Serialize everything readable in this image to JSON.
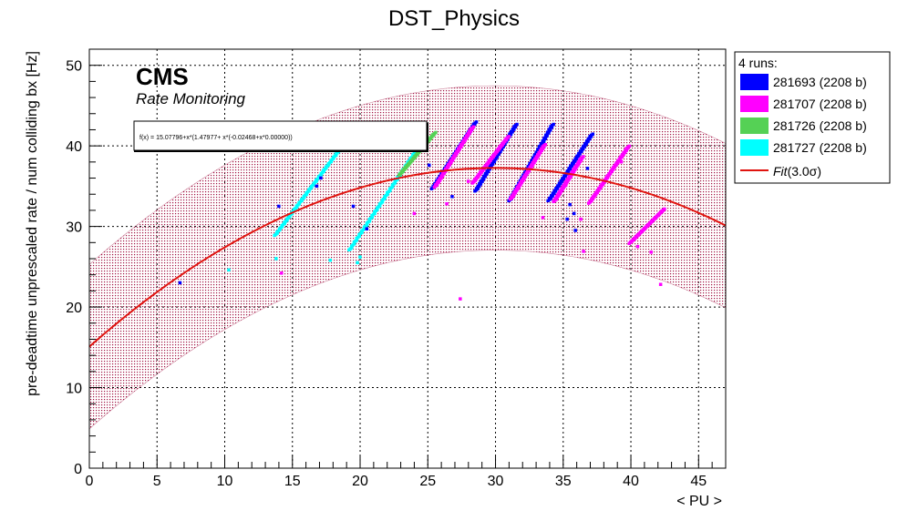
{
  "chart_data": {
    "type": "scatter",
    "title": "DST_Physics",
    "xlabel": "< PU >",
    "ylabel": "pre-deadtime unprescaled rate / num colliding bx [Hz]",
    "xlim": [
      0,
      47
    ],
    "ylim": [
      0,
      52
    ],
    "x_ticks": [
      0,
      5,
      10,
      15,
      20,
      25,
      30,
      35,
      40,
      45
    ],
    "y_ticks": [
      0,
      10,
      20,
      30,
      40,
      50
    ],
    "grid": true,
    "legend_position": "right",
    "cms_label": "CMS",
    "cms_sublabel": "Rate Monitoring",
    "fit_formula": "f(x) = 15.07796+x*(1.47977+ x*(-0.02468+x*0.00000))",
    "fit": {
      "c0": 15.07796,
      "c1": 1.47977,
      "c2": -0.02468,
      "c3": 0.0,
      "band_sigma": 3.0,
      "band_half_width": 10.2
    },
    "legend": {
      "header": "4 runs:",
      "fit_label": "Fit",
      "fit_suffix": "(3.0σ)",
      "entries": [
        {
          "label": "281693 (2208 b)",
          "color": "#0000ff"
        },
        {
          "label": "281707 (2208 b)",
          "color": "#ff00ff"
        },
        {
          "label": "281726 (2208 b)",
          "color": "#55d155"
        },
        {
          "label": "281727 (2208 b)",
          "color": "#00ffff"
        }
      ]
    },
    "fit_color": "#e0140f",
    "band_color": "#a01040",
    "series": [
      {
        "name": "281727",
        "color": "#00ffff",
        "segments": [
          {
            "x0": 13.8,
            "y0": 29.0,
            "x1": 18.5,
            "y1": 39.5
          },
          {
            "x0": 19.3,
            "y0": 27.2,
            "x1": 24.2,
            "y1": 39.5
          }
        ],
        "outliers": [
          [
            13.8,
            26.0
          ],
          [
            10.3,
            24.6
          ],
          [
            17.8,
            25.8
          ],
          [
            20.0,
            26.2
          ],
          [
            19.8,
            25.5
          ]
        ]
      },
      {
        "name": "281726",
        "color": "#55d155",
        "segments": [
          {
            "x0": 23.0,
            "y0": 36.5,
            "x1": 25.5,
            "y1": 41.5
          }
        ],
        "outliers": []
      },
      {
        "name": "281693",
        "color": "#0000ff",
        "segments": [
          {
            "x0": 25.4,
            "y0": 34.8,
            "x1": 28.5,
            "y1": 42.8
          },
          {
            "x0": 28.6,
            "y0": 34.5,
            "x1": 31.5,
            "y1": 42.5
          },
          {
            "x0": 31.1,
            "y0": 33.3,
            "x1": 34.2,
            "y1": 42.5
          },
          {
            "x0": 34.0,
            "y0": 33.3,
            "x1": 37.1,
            "y1": 41.3
          }
        ],
        "outliers": [
          [
            6.7,
            23.0
          ],
          [
            14.0,
            32.5
          ],
          [
            16.8,
            35.0
          ],
          [
            17.1,
            36.0
          ],
          [
            19.5,
            32.5
          ],
          [
            20.5,
            29.7
          ],
          [
            25.1,
            37.6
          ],
          [
            35.5,
            32.7
          ],
          [
            35.3,
            30.9
          ],
          [
            35.8,
            31.6
          ],
          [
            36.8,
            37.2
          ],
          [
            26.8,
            33.7
          ],
          [
            35.9,
            29.5
          ]
        ]
      },
      {
        "name": "281707",
        "color": "#ff00ff",
        "segments": [
          {
            "x0": 25.6,
            "y0": 35.0,
            "x1": 28.3,
            "y1": 42.2
          },
          {
            "x0": 28.4,
            "y0": 35.5,
            "x1": 30.9,
            "y1": 41.0
          },
          {
            "x0": 31.2,
            "y0": 33.5,
            "x1": 33.6,
            "y1": 40.0
          },
          {
            "x0": 34.4,
            "y0": 33.2,
            "x1": 36.4,
            "y1": 38.5
          },
          {
            "x0": 37.0,
            "y0": 33.0,
            "x1": 39.8,
            "y1": 39.8
          },
          {
            "x0": 40.0,
            "y0": 28.0,
            "x1": 42.4,
            "y1": 32.0
          }
        ],
        "outliers": [
          [
            14.2,
            24.2
          ],
          [
            24.0,
            31.6
          ],
          [
            26.4,
            32.8
          ],
          [
            27.4,
            21.0
          ],
          [
            33.5,
            31.1
          ],
          [
            36.3,
            30.9
          ],
          [
            37.5,
            34.2
          ],
          [
            38.0,
            35.6
          ],
          [
            36.5,
            26.9
          ],
          [
            40.5,
            27.5
          ],
          [
            41.5,
            26.8
          ],
          [
            42.2,
            22.8
          ],
          [
            28.0,
            35.6
          ],
          [
            35.2,
            35.1
          ],
          [
            39.3,
            38.0
          ]
        ]
      }
    ]
  }
}
